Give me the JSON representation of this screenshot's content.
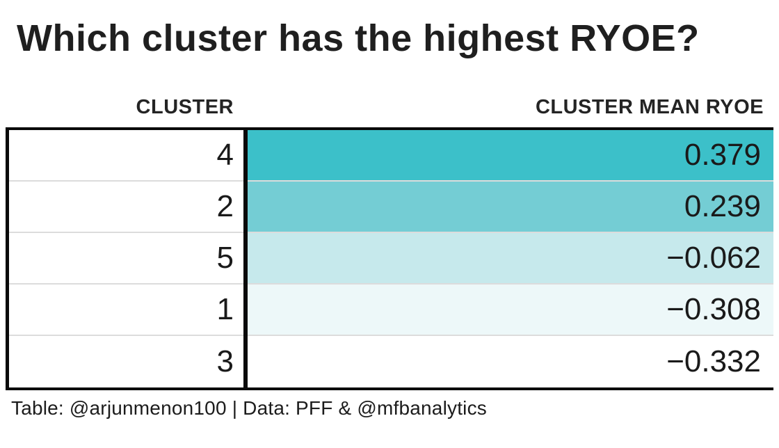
{
  "page": {
    "title": "Which cluster has the highest RYOE?",
    "caption": "Table: @arjunmenon100 | Data: PFF & @mfbanalytics"
  },
  "table": {
    "columns": [
      "CLUSTER",
      "CLUSTER MEAN RYOE"
    ],
    "rows": [
      {
        "cluster": "4",
        "ryoe": "0.379",
        "bg": "#3cc0c9"
      },
      {
        "cluster": "2",
        "ryoe": "0.239",
        "bg": "#74cdd4"
      },
      {
        "cluster": "5",
        "ryoe": "−0.062",
        "bg": "#c6e9ec"
      },
      {
        "cluster": "1",
        "ryoe": "−0.308",
        "bg": "#edf8f9"
      },
      {
        "cluster": "3",
        "ryoe": "−0.332",
        "bg": "#ffffff"
      }
    ]
  },
  "chart_data": {
    "type": "table",
    "title": "Which cluster has the highest RYOE?",
    "columns": [
      "CLUSTER",
      "CLUSTER MEAN RYOE"
    ],
    "categories": [
      "4",
      "2",
      "5",
      "1",
      "3"
    ],
    "values": [
      0.379,
      0.239,
      -0.062,
      -0.308,
      -0.332
    ],
    "rows": [
      [
        "4",
        0.379
      ],
      [
        "2",
        0.239
      ],
      [
        "5",
        -0.062
      ],
      [
        "1",
        -0.308
      ],
      [
        "3",
        -0.332
      ]
    ],
    "color_scale": {
      "mapped_column": "CLUSTER MEAN RYOE",
      "max_color": "#3cc0c9",
      "min_color": "#ffffff"
    },
    "sort": "descending by CLUSTER MEAN RYOE",
    "source": "Table: @arjunmenon100 | Data: PFF & @mfbanalytics"
  }
}
